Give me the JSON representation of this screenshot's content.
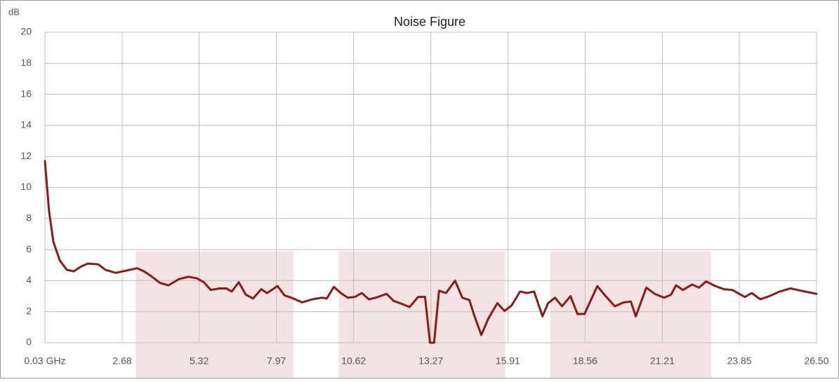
{
  "chart_data": {
    "type": "line",
    "title": "Noise Figure",
    "y_label": "dB",
    "x": [
      0.03,
      0.17,
      0.32,
      0.54,
      0.78,
      1.02,
      1.26,
      1.5,
      1.86,
      2.1,
      2.46,
      2.83,
      3.19,
      3.43,
      3.67,
      3.98,
      4.27,
      4.63,
      4.95,
      5.24,
      5.48,
      5.72,
      6.01,
      6.25,
      6.44,
      6.68,
      6.92,
      7.17,
      7.45,
      7.65,
      8.01,
      8.25,
      8.49,
      8.85,
      9.21,
      9.53,
      9.7,
      9.94,
      10.18,
      10.42,
      10.66,
      10.9,
      11.14,
      11.38,
      11.75,
      11.99,
      12.28,
      12.54,
      12.83,
      13.07,
      13.24,
      13.38,
      13.55,
      13.79,
      14.1,
      14.35,
      14.59,
      14.76,
      15.0,
      15.24,
      15.55,
      15.8,
      16.04,
      16.33,
      16.57,
      16.81,
      17.1,
      17.29,
      17.53,
      17.77,
      18.06,
      18.3,
      18.54,
      18.98,
      19.22,
      19.58,
      19.89,
      20.13,
      20.3,
      20.66,
      20.95,
      21.27,
      21.51,
      21.68,
      21.92,
      22.23,
      22.47,
      22.71,
      23.03,
      23.32,
      23.61,
      24.04,
      24.28,
      24.57,
      24.88,
      25.24,
      25.61,
      25.97,
      26.5
    ],
    "series": [
      {
        "name": "Noise Figure",
        "color": "#8b1a1a",
        "values": [
          11.7,
          8.5,
          6.5,
          5.3,
          4.7,
          4.6,
          4.9,
          5.1,
          5.05,
          4.7,
          4.5,
          4.65,
          4.8,
          4.6,
          4.3,
          3.85,
          3.7,
          4.1,
          4.25,
          4.15,
          3.9,
          3.4,
          3.5,
          3.5,
          3.3,
          3.9,
          3.1,
          2.85,
          3.45,
          3.2,
          3.65,
          3.05,
          2.9,
          2.6,
          2.8,
          2.9,
          2.85,
          3.6,
          3.2,
          2.9,
          2.95,
          3.2,
          2.8,
          2.9,
          3.15,
          2.7,
          2.5,
          2.3,
          2.95,
          2.95,
          0,
          0,
          3.35,
          3.2,
          4.0,
          2.9,
          2.75,
          1.75,
          0.5,
          1.55,
          2.55,
          2.05,
          2.4,
          3.3,
          3.2,
          3.3,
          1.7,
          2.55,
          2.9,
          2.35,
          3.0,
          1.85,
          1.85,
          3.65,
          3.1,
          2.35,
          2.6,
          2.65,
          1.7,
          3.55,
          3.15,
          2.9,
          3.1,
          3.7,
          3.4,
          3.75,
          3.55,
          3.95,
          3.65,
          3.45,
          3.4,
          2.95,
          3.2,
          2.8,
          3.0,
          3.3,
          3.5,
          3.35,
          3.15
        ]
      }
    ],
    "xlim": [
      0.03,
      26.5
    ],
    "xticks": [
      {
        "value": 0.03,
        "label": "0.03 GHz"
      },
      2.68,
      5.32,
      7.97,
      10.62,
      13.27,
      15.91,
      18.56,
      21.21,
      23.85,
      {
        "value": 26.5,
        "label": "26.50"
      }
    ],
    "ylim": [
      0,
      20
    ],
    "yticks": [
      0,
      2,
      4,
      6,
      8,
      10,
      12,
      14,
      16,
      18,
      20
    ],
    "grid": true,
    "highlight_bands": [
      {
        "x0": 3.14,
        "x1": 8.56,
        "top": 5.9
      },
      {
        "x0": 10.11,
        "x1": 15.82,
        "top": 5.9
      },
      {
        "x0": 17.36,
        "x1": 22.88,
        "top": 5.9
      }
    ],
    "band_color": "#f3e3e3"
  }
}
